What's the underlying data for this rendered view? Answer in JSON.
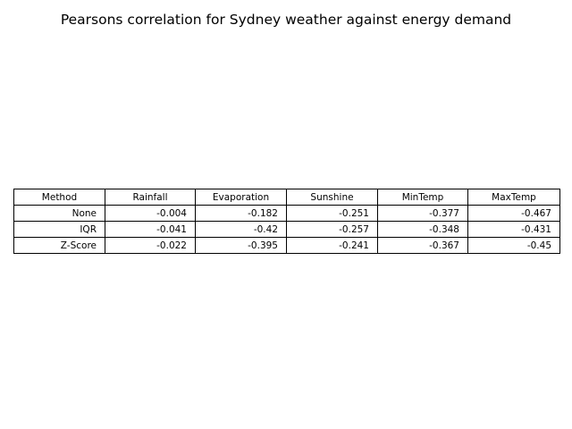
{
  "chart_data": {
    "type": "table",
    "title": "Pearsons correlation for Sydney weather against energy demand",
    "columns": [
      "Method",
      "Rainfall",
      "Evaporation",
      "Sunshine",
      "MinTemp",
      "MaxTemp"
    ],
    "rows": [
      [
        "None",
        "-0.004",
        "-0.182",
        "-0.251",
        "-0.377",
        "-0.467"
      ],
      [
        "IQR",
        "-0.041",
        "-0.42",
        "-0.257",
        "-0.348",
        "-0.431"
      ],
      [
        "Z-Score",
        "-0.022",
        "-0.395",
        "-0.241",
        "-0.367",
        "-0.45"
      ]
    ]
  }
}
